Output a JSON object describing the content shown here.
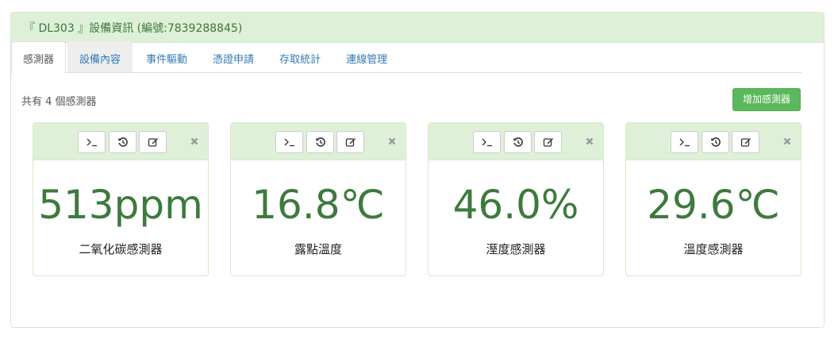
{
  "header": {
    "title": "『 DL303 』設備資訊 (編號:7839288845)"
  },
  "tabs": [
    {
      "label": "感測器"
    },
    {
      "label": "設備內容"
    },
    {
      "label": "事件驅動"
    },
    {
      "label": "憑證申請"
    },
    {
      "label": "存取統計"
    },
    {
      "label": "連線管理"
    }
  ],
  "summary": {
    "count_text": "共有 4 個感測器"
  },
  "toolbar": {
    "add_label": "增加感測器"
  },
  "sensors": [
    {
      "value": "513ppm",
      "name": "二氧化碳感測器"
    },
    {
      "value": "16.8℃",
      "name": "露點溫度"
    },
    {
      "value": "46.0%",
      "name": "溼度感測器"
    },
    {
      "value": "29.6℃",
      "name": "溫度感測器"
    }
  ],
  "icons": {
    "console": "terminal-icon",
    "history": "history-icon",
    "edit": "edit-icon",
    "close": "close-icon"
  },
  "colors": {
    "accent": "#5cb85c",
    "panel_bg": "#dff0d8",
    "value_text": "#3d7a3d",
    "tab_link": "#337ab7"
  }
}
